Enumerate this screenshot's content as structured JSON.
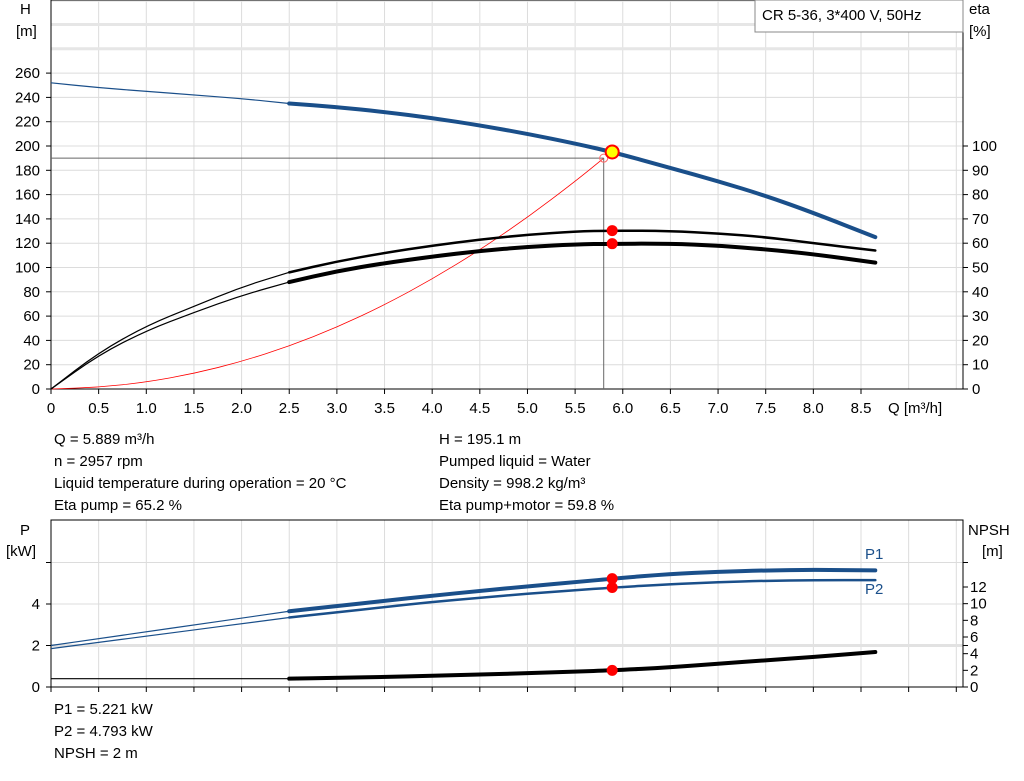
{
  "chart_data": [
    {
      "type": "line",
      "title": "CR 5-36, 3*400 V, 50Hz",
      "xlabel": "Q [m³/h]",
      "ylabel": "H\n[m]",
      "ylabel_unit": "[m]",
      "ylabel_name": "H",
      "y2label_name": "eta",
      "y2label_unit": "[%]",
      "xlim": [
        0,
        9.57
      ],
      "ylim": [
        0,
        320
      ],
      "y2lim": [
        0,
        131.7
      ],
      "xticks": [
        "0",
        "0.5",
        "1.0",
        "1.5",
        "2.0",
        "2.5",
        "3.0",
        "3.5",
        "4.0",
        "4.5",
        "5.0",
        "5.5",
        "6.0",
        "6.5",
        "7.0",
        "7.5",
        "8.0",
        "8.5"
      ],
      "yticks": [
        "0",
        "20",
        "40",
        "60",
        "80",
        "100",
        "120",
        "140",
        "160",
        "180",
        "200",
        "220",
        "240",
        "260"
      ],
      "y2ticks": [
        "0",
        "10",
        "20",
        "30",
        "40",
        "50",
        "60",
        "70",
        "80",
        "90",
        "100"
      ],
      "grid": true,
      "series": [
        {
          "id": "H",
          "axis": "left",
          "color": "#1a4f8a",
          "x": [
            0,
            0.5,
            1,
            1.5,
            2,
            2.5,
            3,
            3.5,
            4,
            4.5,
            5,
            5.5,
            5.889,
            6.5,
            7,
            7.5,
            8,
            8.65
          ],
          "y": [
            252,
            248,
            245,
            242,
            239,
            235,
            232,
            228,
            223,
            217,
            210,
            202,
            195.1,
            182,
            171,
            159,
            145,
            125
          ]
        },
        {
          "id": "eta_pump",
          "axis": "right",
          "color": "#000000",
          "x": [
            0,
            0.5,
            1,
            1.5,
            2,
            2.5,
            3,
            3.5,
            4,
            4.5,
            5,
            5.5,
            5.889,
            6.5,
            7,
            7.5,
            8,
            8.65
          ],
          "y": [
            0,
            15,
            26,
            34,
            42,
            48,
            52.5,
            56,
            59,
            61.5,
            63.5,
            64.8,
            65.2,
            65,
            64,
            62.5,
            60,
            57
          ]
        },
        {
          "id": "eta_pump_motor",
          "axis": "right",
          "color": "#000000",
          "x": [
            0,
            0.5,
            1,
            1.5,
            2,
            2.5,
            3,
            3.5,
            4,
            4.5,
            5,
            5.5,
            5.889,
            6.5,
            7,
            7.5,
            8,
            8.65
          ],
          "y": [
            0,
            14,
            24,
            31.5,
            38.5,
            44,
            48.5,
            51.8,
            54.5,
            56.8,
            58.5,
            59.5,
            59.8,
            59.8,
            59,
            57.5,
            55.5,
            52
          ]
        },
        {
          "id": "system",
          "axis": "left",
          "color": "#ff0000",
          "x": [
            0,
            0.5,
            1,
            1.5,
            2,
            2.5,
            3,
            3.5,
            4,
            4.5,
            5,
            5.5,
            5.8
          ],
          "y": [
            0,
            1.4,
            5.6,
            12.7,
            22.6,
            35.3,
            50.8,
            69.2,
            90.4,
            114.4,
            141.2,
            170.9,
            190
          ]
        }
      ],
      "duty_point": {
        "Q": 5.889,
        "H": 195.1,
        "eta_pump": 65.2,
        "eta_pump_motor": 59.8
      },
      "requested_point": {
        "Q": 5.8,
        "H": 190
      }
    },
    {
      "type": "line",
      "ylabel_name": "P",
      "ylabel_unit": "[kW]",
      "y2label_name": "NPSH",
      "y2label_unit": "[m]",
      "xlim": [
        0,
        9.57
      ],
      "ylim": [
        0,
        8
      ],
      "y2lim": [
        0,
        20
      ],
      "yticks": [
        "0",
        "2",
        "4"
      ],
      "y2ticks": [
        "0",
        "2",
        "4",
        "6",
        "8",
        "10",
        "12"
      ],
      "grid": true,
      "series": [
        {
          "id": "P1",
          "name": "P1",
          "axis": "left",
          "color": "#1a4f8a",
          "x": [
            0,
            0.5,
            1,
            1.5,
            2,
            2.5,
            3,
            3.5,
            4,
            4.5,
            5,
            5.5,
            5.889,
            6.5,
            7,
            7.5,
            8,
            8.65
          ],
          "y": [
            2.0,
            2.33,
            2.66,
            2.99,
            3.32,
            3.65,
            3.9,
            4.15,
            4.4,
            4.63,
            4.85,
            5.05,
            5.221,
            5.45,
            5.55,
            5.62,
            5.65,
            5.62
          ]
        },
        {
          "id": "P2",
          "name": "P2",
          "axis": "left",
          "color": "#1a4f8a",
          "x": [
            0,
            0.5,
            1,
            1.5,
            2,
            2.5,
            3,
            3.5,
            4,
            4.5,
            5,
            5.5,
            5.889,
            6.5,
            7,
            7.5,
            8,
            8.65
          ],
          "y": [
            1.85,
            2.15,
            2.45,
            2.75,
            3.05,
            3.35,
            3.6,
            3.85,
            4.1,
            4.3,
            4.5,
            4.66,
            4.793,
            4.95,
            5.05,
            5.12,
            5.15,
            5.15
          ]
        },
        {
          "id": "NPSH",
          "axis": "right",
          "color": "#000000",
          "x": [
            0,
            0.5,
            1,
            1.5,
            2,
            2.5,
            3,
            3.5,
            4,
            4.5,
            5,
            5.5,
            5.889,
            6.5,
            7,
            7.5,
            8,
            8.65
          ],
          "y": [
            1.0,
            1.0,
            1.0,
            1.0,
            1.0,
            1.0,
            1.1,
            1.2,
            1.35,
            1.5,
            1.65,
            1.85,
            2.0,
            2.35,
            2.8,
            3.2,
            3.6,
            4.2
          ]
        }
      ],
      "duty_point": {
        "Q": 5.889,
        "P1": 5.221,
        "P2": 4.793,
        "NPSH": 2
      }
    }
  ],
  "info": {
    "q": "Q = 5.889 m³/h",
    "n": "n = 2957 rpm",
    "temp": "Liquid temperature during operation = 20 °C",
    "eta_pump": "Eta pump = 65.2 %",
    "h": "H = 195.1 m",
    "liquid": "Pumped liquid = Water",
    "density": "Density = 998.2 kg/m³",
    "eta_total": "Eta pump+motor = 59.8 %",
    "p1": "P1 = 5.221 kW",
    "p2": "P2 = 4.793 kW",
    "npsh": "NPSH = 2 m"
  }
}
